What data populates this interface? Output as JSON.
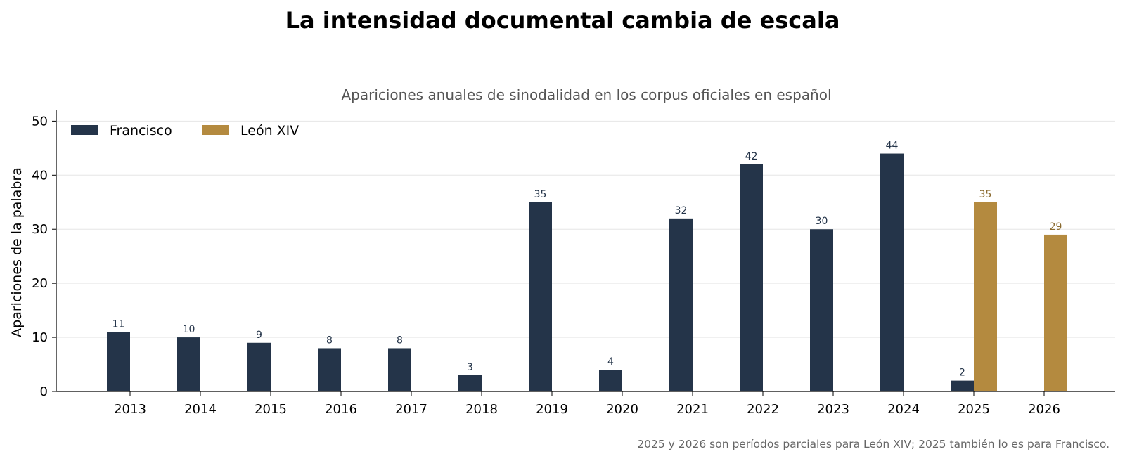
{
  "chart_data": {
    "type": "bar",
    "title": "La intensidad documental cambia de escala",
    "subtitle": "Apariciones anuales de sinodalidad en los corpus oficiales en español",
    "ylabel": "Apariciones de la palabra",
    "xlabel": "",
    "ylim": [
      0,
      52
    ],
    "yticks": [
      0,
      10,
      20,
      30,
      40,
      50
    ],
    "grid": true,
    "legend_position": "top-left",
    "categories": [
      "2013",
      "2014",
      "2015",
      "2016",
      "2017",
      "2018",
      "2019",
      "2020",
      "2021",
      "2022",
      "2023",
      "2024",
      "2025",
      "2026"
    ],
    "series": [
      {
        "name": "Francisco",
        "color": "#243449",
        "label_color": "#243449",
        "values": [
          11,
          10,
          9,
          8,
          8,
          3,
          35,
          4,
          32,
          42,
          30,
          44,
          2,
          null
        ]
      },
      {
        "name": "León XIV",
        "color": "#b48a3f",
        "label_color": "#8a6a2f",
        "values": [
          null,
          null,
          null,
          null,
          null,
          null,
          null,
          null,
          null,
          null,
          null,
          null,
          35,
          29
        ]
      }
    ],
    "footnote": "2025 y 2026 son períodos parciales para León XIV; 2025 también lo es para Francisco."
  }
}
